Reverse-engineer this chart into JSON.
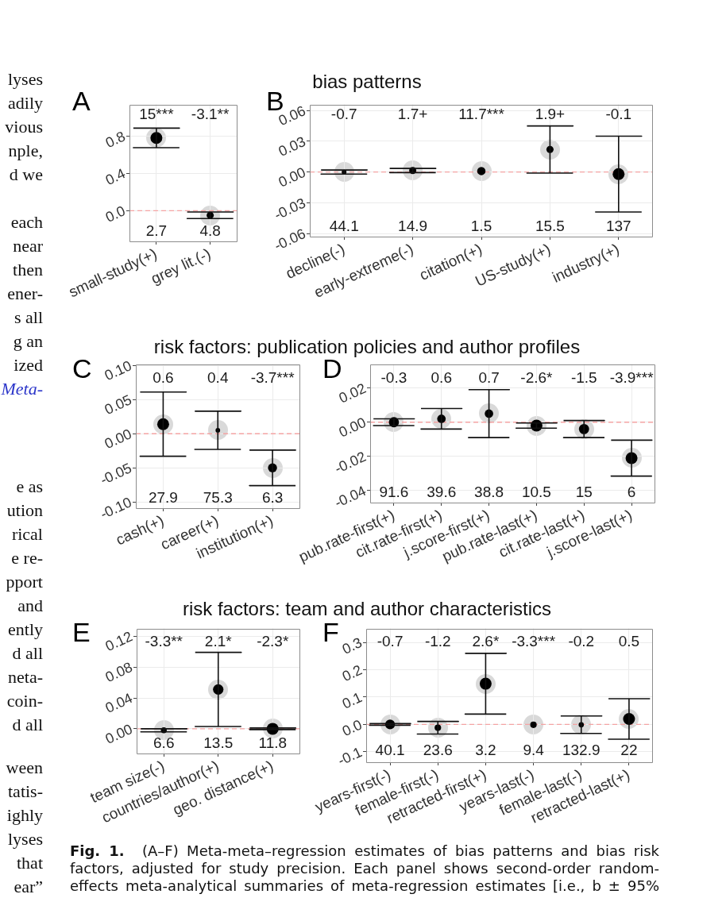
{
  "chart_data": [
    {
      "type": "bubble",
      "categories": [
        "small-study(+)",
        "grey lit.(-)"
      ],
      "values": [
        0.78,
        -0.05
      ],
      "errors": [
        0.105,
        0.035
      ],
      "sizes": [
        1,
        0.36
      ],
      "color": "#000000",
      "ylim": [
        -0.33,
        1.14
      ],
      "yticks": [
        {
          "value": 0,
          "label": "0.0"
        },
        0.4,
        0.8
      ],
      "grid": true,
      "ref_lines": [
        {
          "axis": "y",
          "value": 0,
          "color": "#f4a3a3",
          "line_style": "dashed"
        }
      ],
      "annotations": [
        "A",
        "15***",
        "-3.1**",
        "2.7",
        "4.8"
      ]
    },
    {
      "type": "bubble",
      "categories": [
        "decline(-)",
        "early-extreme(-)",
        "citation(+)",
        "US-study(+)",
        "industry(+)"
      ],
      "values": [
        0.0,
        0.0015,
        0.001,
        0.022,
        -0.002
      ],
      "errors": [
        0.002,
        0.002,
        null,
        0.023,
        0.037
      ],
      "sizes": [
        0.16,
        0.36,
        0.49,
        0.36,
        1
      ],
      "color": "#000000",
      "ylim": [
        -0.063,
        0.066
      ],
      "yticks": [
        -0.06,
        -0.03,
        {
          "value": 0,
          "label": "0.00"
        },
        0.03,
        0.06
      ],
      "grid": true,
      "ref_lines": [
        {
          "axis": "y",
          "value": 0,
          "color": "#f4a3a3",
          "line_style": "dashed"
        }
      ],
      "annotations": [
        "B",
        "-0.7",
        "1.7+",
        "11.7***",
        "1.9+",
        "-0.1",
        "44.1",
        "14.9",
        "1.5",
        "15.5",
        "137"
      ]
    },
    {
      "type": "bubble",
      "categories": [
        "cash(+)",
        "career(+)",
        "institution(+)"
      ],
      "values": [
        0.014,
        0.005,
        -0.05
      ],
      "errors": [
        0.047,
        0.028,
        0.026
      ],
      "sizes": [
        1,
        0.15,
        0.57
      ],
      "color": "#000000",
      "ylim": [
        -0.109,
        0.102
      ],
      "yticks": [
        {
          "value": -0.1,
          "label": "-0.10"
        },
        -0.05,
        {
          "value": 0,
          "label": "0.00"
        },
        0.05,
        {
          "value": 0.1,
          "label": "0.10"
        }
      ],
      "grid": true,
      "ref_lines": [
        {
          "axis": "y",
          "value": 0,
          "color": "#f4a3a3",
          "line_style": "dashed"
        }
      ],
      "annotations": [
        "C",
        "0.6",
        "0.4",
        "-3.7***",
        "27.9",
        "75.3",
        "6.3"
      ]
    },
    {
      "type": "bubble",
      "categories": [
        "pub.rate-first(+)",
        "cit.rate-first(+)",
        "j.score-first(+)",
        "pub.rate-last(+)",
        "cit.rate-last(+)",
        "j.score-last(+)"
      ],
      "values": [
        0.0,
        0.002,
        0.005,
        -0.002,
        -0.004,
        -0.021
      ],
      "errors": [
        0.002,
        0.006,
        0.014,
        0.0015,
        0.005,
        0.0105
      ],
      "sizes": [
        0.73,
        0.51,
        0.51,
        1,
        0.73,
        1
      ],
      "color": "#000000",
      "ylim": [
        -0.047,
        0.034
      ],
      "yticks": [
        -0.04,
        -0.02,
        {
          "value": 0,
          "label": "0.00"
        },
        0.02
      ],
      "grid": true,
      "ref_lines": [
        {
          "axis": "y",
          "value": 0,
          "color": "#f4a3a3",
          "line_style": "dashed"
        }
      ],
      "annotations": [
        "D",
        "-0.3",
        "0.6",
        "0.7",
        "-2.6*",
        "-1.5",
        "-3.9***",
        "91.6",
        "39.6",
        "38.8",
        "10.5",
        "15",
        "6"
      ]
    },
    {
      "type": "bubble",
      "categories": [
        "team size(-)",
        "countries/author(+)",
        "geo. distance(+)"
      ],
      "values": [
        -0.002,
        0.051,
        0.0
      ],
      "errors": [
        0.002,
        0.048,
        0.001
      ],
      "sizes": [
        0.25,
        0.77,
        1
      ],
      "color": "#000000",
      "ylim": [
        -0.032,
        0.13
      ],
      "yticks": [
        {
          "value": 0,
          "label": "0.00"
        },
        0.04,
        0.08,
        0.12
      ],
      "grid": true,
      "ref_lines": [
        {
          "axis": "y",
          "value": 0,
          "color": "#f4a3a3",
          "line_style": "dashed"
        }
      ],
      "annotations": [
        "E",
        "-3.3**",
        "2.1*",
        "-2.3*",
        "6.6",
        "13.5",
        "11.8"
      ]
    },
    {
      "type": "bubble",
      "categories": [
        "years-first(-)",
        "female-first(-)",
        "retracted-first(+)",
        "years-last(-)",
        "female-last(-)",
        "retracted-last(+)"
      ],
      "values": [
        0.0,
        -0.012,
        0.149,
        -0.001,
        -0.001,
        0.02
      ],
      "errors": [
        0.003,
        0.023,
        0.111,
        null,
        0.032,
        0.074
      ],
      "sizes": [
        0.67,
        0.3,
        1,
        0.3,
        0.2,
        1
      ],
      "color": "#000000",
      "ylim": [
        -0.138,
        0.351
      ],
      "yticks": [
        -0.1,
        {
          "value": 0,
          "label": "0.0"
        },
        0.1,
        0.2,
        0.3
      ],
      "grid": true,
      "ref_lines": [
        {
          "axis": "y",
          "value": 0,
          "color": "#f4a3a3",
          "line_style": "dashed"
        }
      ],
      "annotations": [
        "F",
        "-0.7",
        "-1.2",
        "2.6*",
        "-3.3***",
        "-0.2",
        "0.5",
        "40.1",
        "23.6",
        "3.2",
        "9.4",
        "132.9",
        "22"
      ]
    },
    {
      "type": "other",
      "annotations": [
        "lyses\nadily\nvious\nnple,\nd we",
        "each\nnear\nthen\nener-\ns all\ng an\nized\nMeta-",
        "e as\nution\nrical\ne re-\npport\nand\nently\nd all\nneta-\ncoin-\nd all",
        "ween\ntatis-\nighly\nlyses\nthat\near”",
        "bias patterns",
        "risk factors: publication policies and author profiles",
        "risk factors: team and author characteristics",
        "Fig. 1. (A–F) Meta-meta–regression estimates of bias patterns and bias risk factors, adjusted for study precision. Each panel shows second-order random-effects meta-analytical summaries of meta-regression estimates [i.e., b ± 95%"
      ]
    }
  ]
}
